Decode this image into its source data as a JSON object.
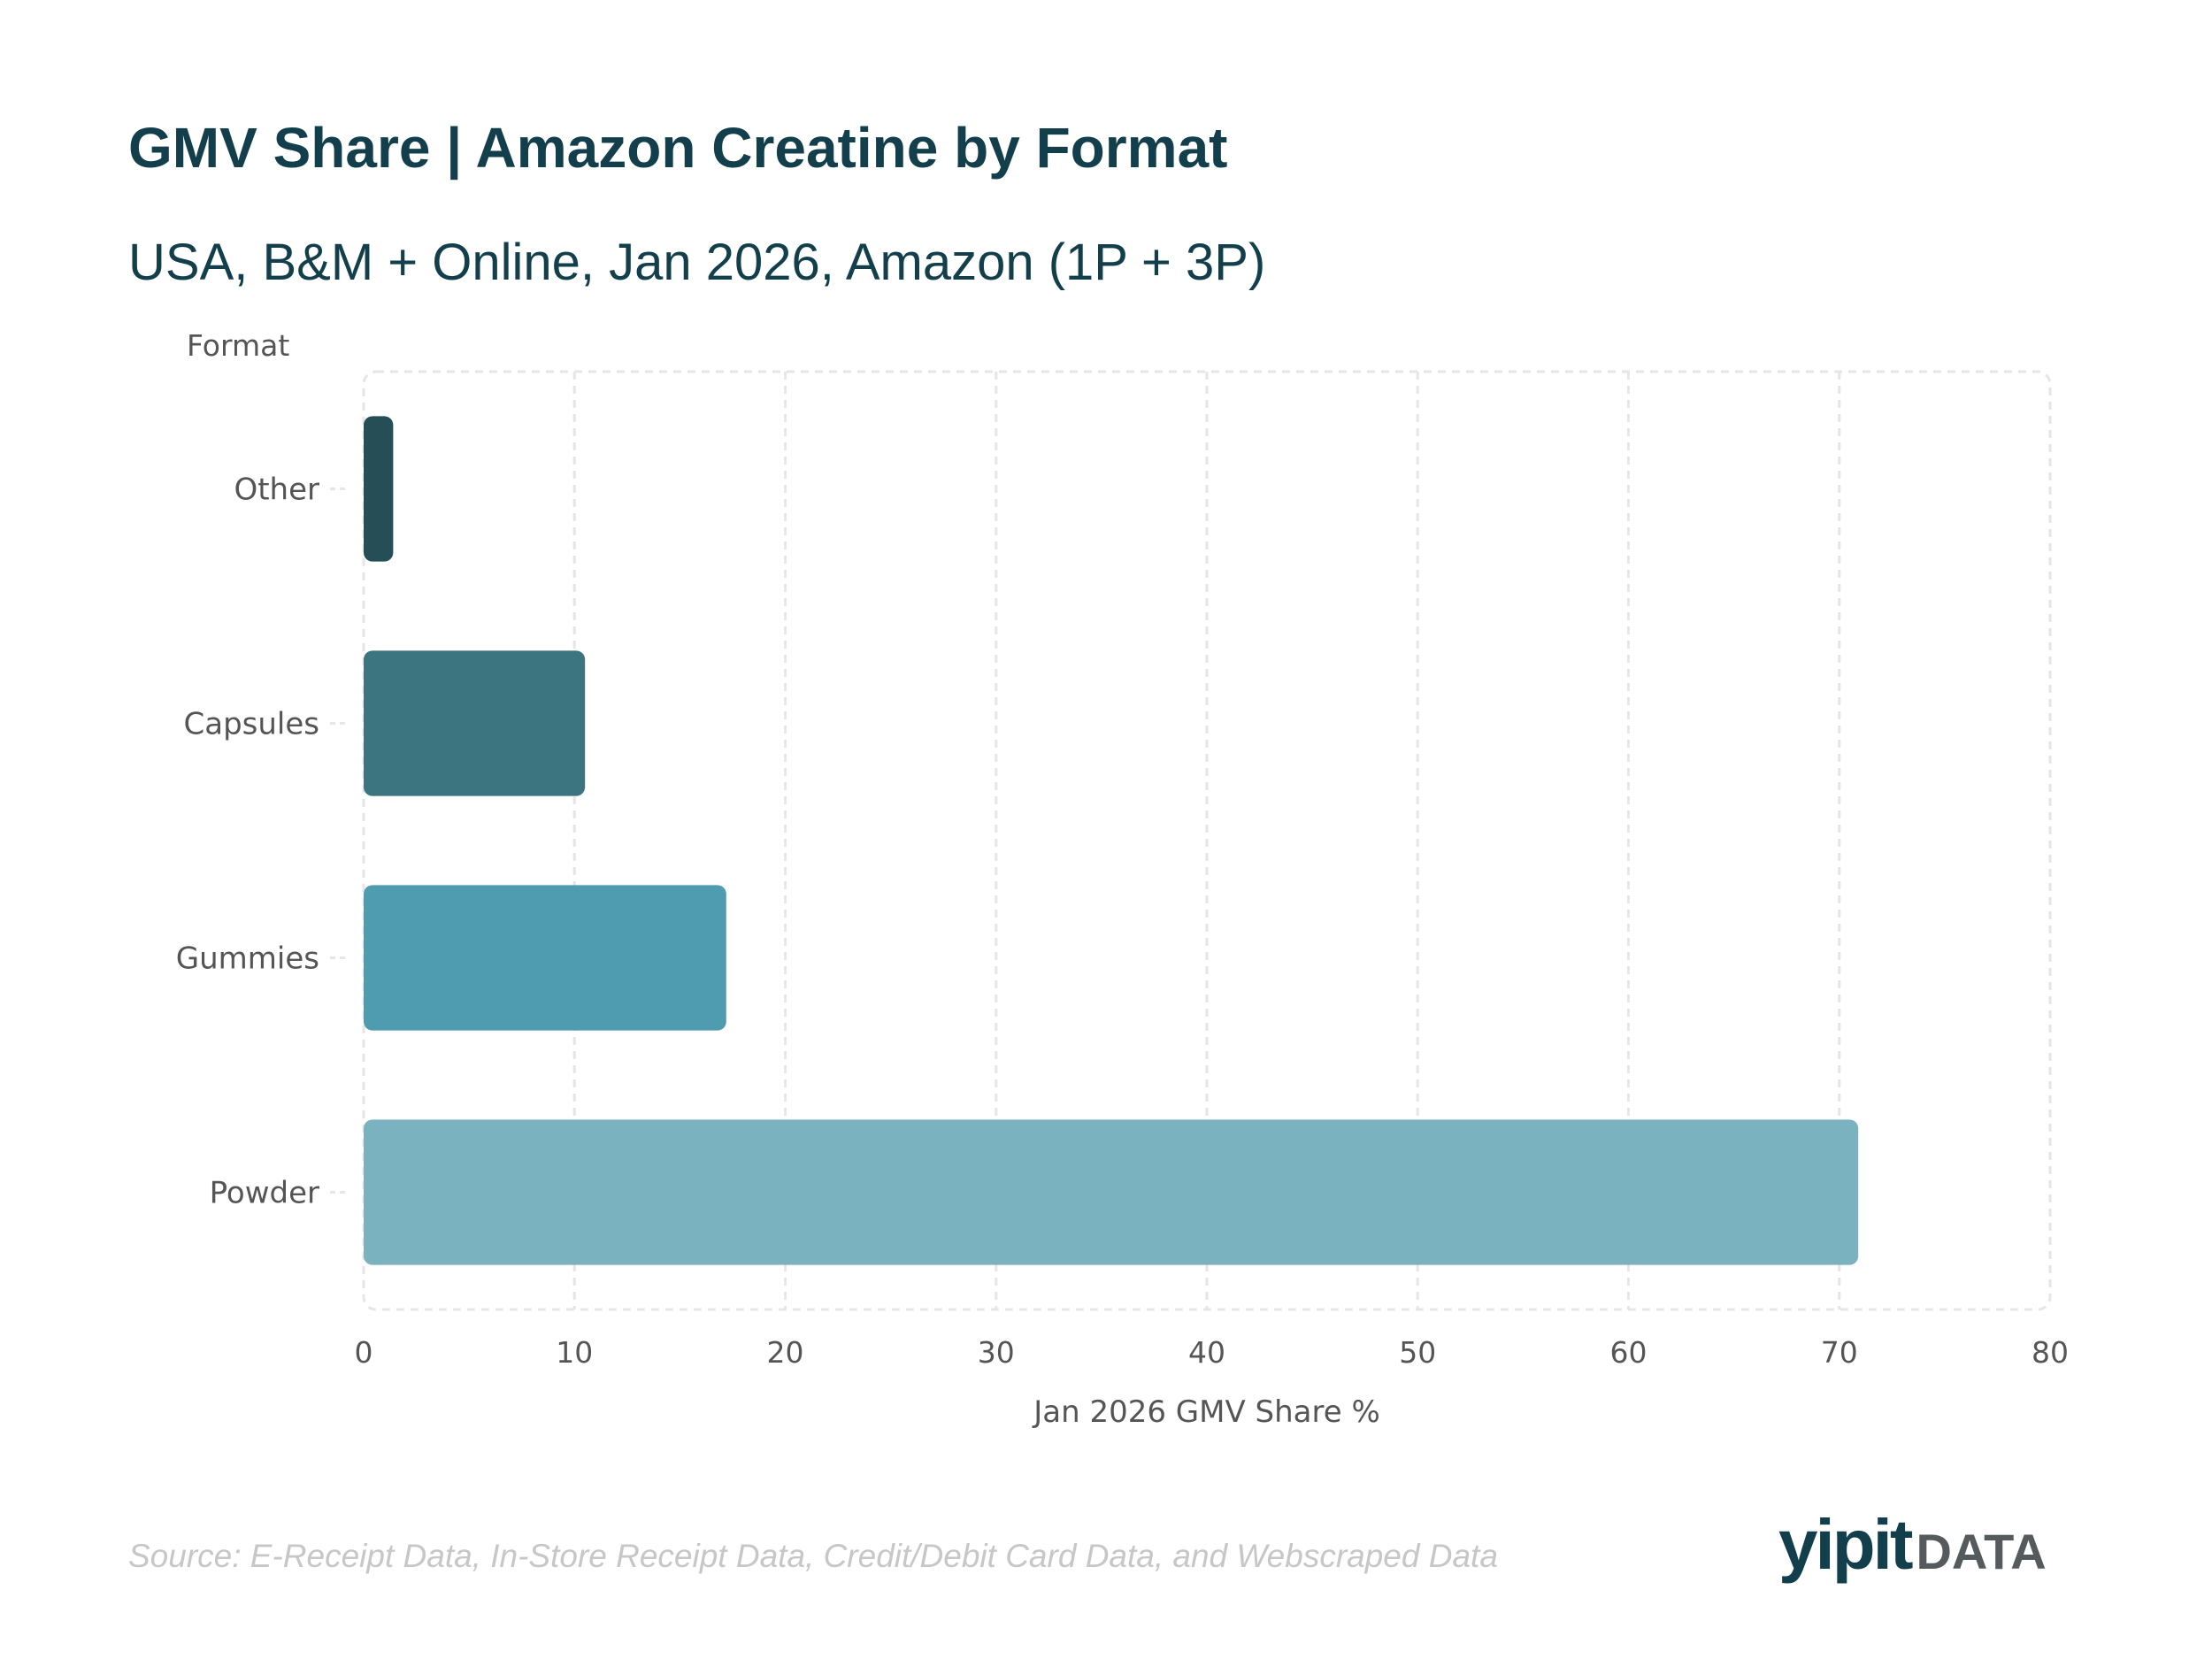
{
  "header": {
    "title": "GMV Share | Amazon Creatine by Format",
    "subtitle": "USA, B&M + Online, Jan 2026, Amazon (1P + 3P)"
  },
  "chart_data": {
    "type": "bar",
    "orientation": "horizontal",
    "title": "GMV Share | Amazon Creatine by Format",
    "subtitle": "USA, B&M + Online, Jan 2026, Amazon (1P + 3P)",
    "ylabel": "Format",
    "xlabel": "Jan 2026 GMV Share %",
    "categories": [
      "Other",
      "Capsules",
      "Gummies",
      "Powder"
    ],
    "values": [
      1.4,
      10.5,
      17.2,
      70.9
    ],
    "colors": [
      "#264e57",
      "#3c757f",
      "#4f9bb0",
      "#7ab2c0"
    ],
    "xlim": [
      0,
      80
    ],
    "xticks": [
      0,
      10,
      20,
      30,
      40,
      50,
      60,
      70,
      80
    ],
    "grid": true,
    "grid_color": "#e6e6e6"
  },
  "footer": {
    "source": "Source: E-Receipt Data, In-Store Receipt Data, Credit/Debit Card Data, and Webscraped Data",
    "logo_main": "yipit",
    "logo_sub": "DATA"
  }
}
